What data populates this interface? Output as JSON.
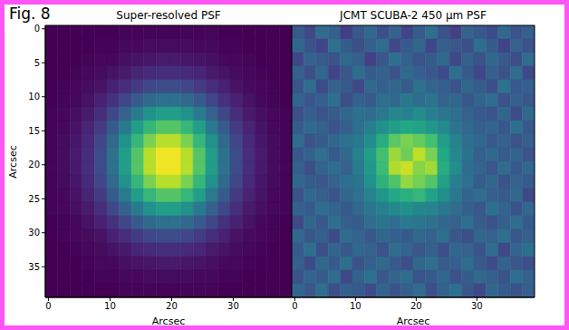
{
  "figure_label": "Fig. 8",
  "chart_data": [
    {
      "type": "heatmap",
      "title": "Super-resolved PSF",
      "xlabel": "Arcsec",
      "ylabel": "Arcsec",
      "xlim": [
        -0.5,
        39.5
      ],
      "ylim": [
        39.5,
        -0.5
      ],
      "xticks": [
        0,
        10,
        20,
        30
      ],
      "yticks": [
        0,
        5,
        10,
        15,
        20,
        25,
        30,
        35
      ],
      "cells": [
        [
          0,
          0,
          0,
          0,
          0,
          0,
          0.01,
          0.01,
          0.01,
          0.01,
          0.01,
          0.01,
          0.01,
          0.01,
          0,
          0,
          0,
          0,
          0,
          0
        ],
        [
          0,
          0,
          0,
          0,
          0.01,
          0.01,
          0.02,
          0.02,
          0.03,
          0.03,
          0.03,
          0.03,
          0.02,
          0.02,
          0.01,
          0.01,
          0,
          0,
          0,
          0
        ],
        [
          0,
          0,
          0,
          0.01,
          0.02,
          0.02,
          0.04,
          0.05,
          0.06,
          0.07,
          0.07,
          0.06,
          0.05,
          0.04,
          0.02,
          0.02,
          0.01,
          0,
          0,
          0
        ],
        [
          0,
          0,
          0.01,
          0.02,
          0.03,
          0.05,
          0.07,
          0.1,
          0.12,
          0.13,
          0.13,
          0.12,
          0.1,
          0.07,
          0.05,
          0.03,
          0.02,
          0.01,
          0,
          0
        ],
        [
          0,
          0.01,
          0.02,
          0.03,
          0.05,
          0.09,
          0.13,
          0.17,
          0.21,
          0.23,
          0.23,
          0.21,
          0.17,
          0.13,
          0.09,
          0.05,
          0.03,
          0.02,
          0.01,
          0
        ],
        [
          0,
          0.01,
          0.02,
          0.05,
          0.09,
          0.14,
          0.21,
          0.28,
          0.34,
          0.37,
          0.37,
          0.34,
          0.28,
          0.21,
          0.14,
          0.09,
          0.05,
          0.02,
          0.01,
          0
        ],
        [
          0.01,
          0.02,
          0.04,
          0.07,
          0.13,
          0.21,
          0.31,
          0.41,
          0.5,
          0.55,
          0.55,
          0.5,
          0.41,
          0.31,
          0.21,
          0.13,
          0.07,
          0.04,
          0.02,
          0.01
        ],
        [
          0.01,
          0.02,
          0.05,
          0.1,
          0.17,
          0.28,
          0.41,
          0.55,
          0.66,
          0.73,
          0.73,
          0.66,
          0.55,
          0.41,
          0.28,
          0.17,
          0.1,
          0.05,
          0.02,
          0.01
        ],
        [
          0.01,
          0.03,
          0.06,
          0.12,
          0.21,
          0.34,
          0.5,
          0.66,
          0.8,
          0.89,
          0.89,
          0.8,
          0.66,
          0.5,
          0.34,
          0.21,
          0.12,
          0.06,
          0.03,
          0.01
        ],
        [
          0.01,
          0.03,
          0.07,
          0.13,
          0.23,
          0.37,
          0.55,
          0.73,
          0.89,
          0.98,
          0.98,
          0.89,
          0.73,
          0.55,
          0.37,
          0.23,
          0.13,
          0.07,
          0.03,
          0.01
        ],
        [
          0.01,
          0.03,
          0.07,
          0.13,
          0.23,
          0.37,
          0.55,
          0.73,
          0.89,
          0.98,
          0.98,
          0.89,
          0.73,
          0.55,
          0.37,
          0.23,
          0.13,
          0.07,
          0.03,
          0.01
        ],
        [
          0.01,
          0.03,
          0.06,
          0.12,
          0.21,
          0.34,
          0.5,
          0.66,
          0.8,
          0.89,
          0.89,
          0.8,
          0.66,
          0.5,
          0.34,
          0.21,
          0.12,
          0.06,
          0.03,
          0.01
        ],
        [
          0.01,
          0.02,
          0.05,
          0.1,
          0.17,
          0.28,
          0.41,
          0.55,
          0.66,
          0.73,
          0.73,
          0.66,
          0.55,
          0.41,
          0.28,
          0.17,
          0.1,
          0.05,
          0.02,
          0.01
        ],
        [
          0.01,
          0.02,
          0.04,
          0.07,
          0.13,
          0.21,
          0.31,
          0.41,
          0.5,
          0.55,
          0.55,
          0.5,
          0.41,
          0.31,
          0.21,
          0.13,
          0.07,
          0.04,
          0.02,
          0.01
        ],
        [
          0,
          0.01,
          0.02,
          0.05,
          0.09,
          0.14,
          0.21,
          0.28,
          0.34,
          0.37,
          0.37,
          0.34,
          0.28,
          0.21,
          0.14,
          0.09,
          0.05,
          0.02,
          0.01,
          0
        ],
        [
          0,
          0.01,
          0.02,
          0.03,
          0.05,
          0.09,
          0.13,
          0.17,
          0.21,
          0.23,
          0.23,
          0.21,
          0.17,
          0.13,
          0.09,
          0.05,
          0.03,
          0.02,
          0.01,
          0
        ],
        [
          0,
          0,
          0.01,
          0.02,
          0.03,
          0.05,
          0.07,
          0.1,
          0.12,
          0.13,
          0.13,
          0.12,
          0.1,
          0.07,
          0.05,
          0.03,
          0.02,
          0.01,
          0,
          0
        ],
        [
          0,
          0,
          0,
          0.01,
          0.02,
          0.02,
          0.04,
          0.05,
          0.06,
          0.07,
          0.07,
          0.06,
          0.05,
          0.04,
          0.02,
          0.02,
          0.01,
          0,
          0,
          0
        ],
        [
          0,
          0,
          0,
          0,
          0.01,
          0.01,
          0.02,
          0.02,
          0.03,
          0.03,
          0.03,
          0.03,
          0.02,
          0.02,
          0.01,
          0.01,
          0,
          0,
          0,
          0
        ],
        [
          0,
          0,
          0,
          0,
          0,
          0,
          0.01,
          0.01,
          0.01,
          0.01,
          0.01,
          0.01,
          0.01,
          0.01,
          0,
          0,
          0,
          0,
          0,
          0
        ]
      ]
    },
    {
      "type": "heatmap",
      "title": "JCMT SCUBA-2 450 μm PSF",
      "xlabel": "Arcsec",
      "tick_labels": "x",
      "xlim": [
        -0.5,
        39.5
      ],
      "ylim": [
        39.5,
        -0.5
      ],
      "xticks": [
        0,
        10,
        20,
        30
      ],
      "cells": [
        [
          0.28,
          0.22,
          0.35,
          0.3,
          0.18,
          0.27,
          0.33,
          0.24,
          0.31,
          0.2,
          0.29,
          0.36,
          0.25,
          0.19,
          0.32,
          0.27,
          0.23,
          0.34,
          0.26,
          0.3
        ],
        [
          0.33,
          0.26,
          0.2,
          0.37,
          0.29,
          0.24,
          0.3,
          0.35,
          0.22,
          0.28,
          0.33,
          0.21,
          0.3,
          0.27,
          0.24,
          0.36,
          0.29,
          0.2,
          0.31,
          0.25
        ],
        [
          0.21,
          0.31,
          0.28,
          0.25,
          0.34,
          0.3,
          0.19,
          0.27,
          0.36,
          0.31,
          0.26,
          0.29,
          0.34,
          0.22,
          0.3,
          0.25,
          0.33,
          0.28,
          0.24,
          0.35
        ],
        [
          0.3,
          0.24,
          0.33,
          0.2,
          0.27,
          0.35,
          0.29,
          0.31,
          0.26,
          0.34,
          0.3,
          0.27,
          0.23,
          0.36,
          0.28,
          0.21,
          0.3,
          0.26,
          0.35,
          0.22
        ],
        [
          0.26,
          0.35,
          0.23,
          0.31,
          0.28,
          0.22,
          0.34,
          0.3,
          0.33,
          0.29,
          0.37,
          0.32,
          0.3,
          0.26,
          0.33,
          0.29,
          0.24,
          0.37,
          0.28,
          0.3
        ],
        [
          0.32,
          0.27,
          0.3,
          0.36,
          0.24,
          0.31,
          0.28,
          0.36,
          0.34,
          0.4,
          0.35,
          0.38,
          0.31,
          0.33,
          0.27,
          0.32,
          0.35,
          0.25,
          0.3,
          0.27
        ],
        [
          0.24,
          0.3,
          0.26,
          0.29,
          0.33,
          0.37,
          0.35,
          0.4,
          0.45,
          0.43,
          0.48,
          0.42,
          0.39,
          0.36,
          0.31,
          0.28,
          0.26,
          0.33,
          0.23,
          0.34
        ],
        [
          0.29,
          0.34,
          0.31,
          0.25,
          0.3,
          0.36,
          0.42,
          0.5,
          0.55,
          0.6,
          0.58,
          0.52,
          0.47,
          0.38,
          0.34,
          0.3,
          0.32,
          0.27,
          0.36,
          0.28
        ],
        [
          0.35,
          0.26,
          0.29,
          0.33,
          0.37,
          0.4,
          0.48,
          0.62,
          0.74,
          0.8,
          0.76,
          0.7,
          0.55,
          0.44,
          0.36,
          0.33,
          0.28,
          0.31,
          0.25,
          0.3
        ],
        [
          0.27,
          0.31,
          0.36,
          0.28,
          0.34,
          0.43,
          0.55,
          0.7,
          0.85,
          0.78,
          0.9,
          0.8,
          0.6,
          0.46,
          0.38,
          0.3,
          0.34,
          0.29,
          0.32,
          0.26
        ],
        [
          0.3,
          0.24,
          0.32,
          0.35,
          0.31,
          0.41,
          0.53,
          0.68,
          0.88,
          0.92,
          0.82,
          0.86,
          0.62,
          0.48,
          0.35,
          0.32,
          0.27,
          0.35,
          0.28,
          0.33
        ],
        [
          0.33,
          0.29,
          0.27,
          0.31,
          0.36,
          0.38,
          0.5,
          0.64,
          0.72,
          0.84,
          0.79,
          0.73,
          0.57,
          0.42,
          0.37,
          0.29,
          0.33,
          0.26,
          0.31,
          0.29
        ],
        [
          0.25,
          0.34,
          0.3,
          0.26,
          0.33,
          0.37,
          0.44,
          0.52,
          0.6,
          0.63,
          0.66,
          0.58,
          0.49,
          0.4,
          0.32,
          0.35,
          0.3,
          0.28,
          0.34,
          0.22
        ],
        [
          0.31,
          0.28,
          0.35,
          0.32,
          0.28,
          0.34,
          0.39,
          0.43,
          0.47,
          0.5,
          0.46,
          0.44,
          0.4,
          0.35,
          0.3,
          0.27,
          0.36,
          0.32,
          0.26,
          0.33
        ],
        [
          0.22,
          0.33,
          0.27,
          0.36,
          0.3,
          0.29,
          0.35,
          0.38,
          0.36,
          0.41,
          0.39,
          0.37,
          0.33,
          0.31,
          0.36,
          0.29,
          0.25,
          0.3,
          0.35,
          0.28
        ],
        [
          0.34,
          0.27,
          0.3,
          0.23,
          0.35,
          0.32,
          0.27,
          0.33,
          0.3,
          0.28,
          0.34,
          0.31,
          0.36,
          0.27,
          0.24,
          0.33,
          0.31,
          0.37,
          0.27,
          0.3
        ],
        [
          0.28,
          0.36,
          0.24,
          0.32,
          0.27,
          0.34,
          0.31,
          0.25,
          0.35,
          0.32,
          0.27,
          0.3,
          0.24,
          0.33,
          0.31,
          0.26,
          0.35,
          0.22,
          0.32,
          0.36
        ],
        [
          0.3,
          0.23,
          0.33,
          0.28,
          0.36,
          0.26,
          0.3,
          0.34,
          0.28,
          0.24,
          0.33,
          0.36,
          0.29,
          0.3,
          0.35,
          0.28,
          0.23,
          0.31,
          0.27,
          0.24
        ],
        [
          0.26,
          0.32,
          0.29,
          0.35,
          0.22,
          0.31,
          0.37,
          0.27,
          0.32,
          0.35,
          0.26,
          0.28,
          0.33,
          0.25,
          0.29,
          0.34,
          0.3,
          0.26,
          0.36,
          0.31
        ],
        [
          0.33,
          0.27,
          0.36,
          0.24,
          0.3,
          0.28,
          0.23,
          0.32,
          0.26,
          0.3,
          0.35,
          0.24,
          0.31,
          0.36,
          0.27,
          0.22,
          0.33,
          0.29,
          0.25,
          0.3
        ]
      ]
    }
  ]
}
